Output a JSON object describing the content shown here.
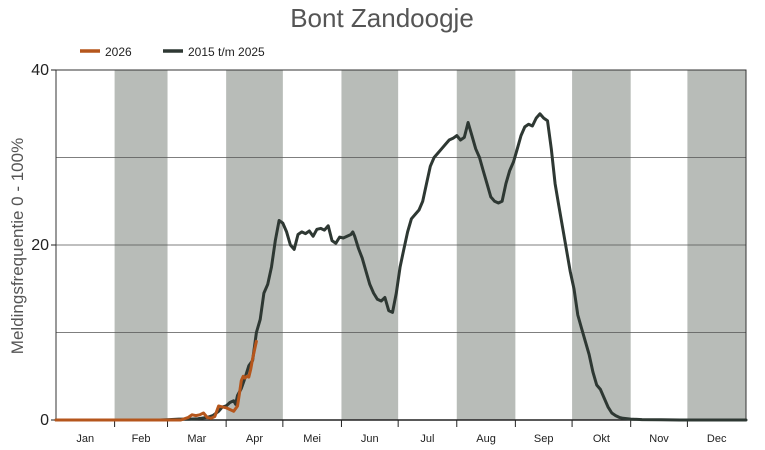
{
  "chart_data": {
    "type": "line",
    "title": "Bont Zandoogje",
    "ylabel": "Meldingsfrequentie 0 - 100%",
    "xlabel": "",
    "ylim": [
      0,
      40
    ],
    "yticks": [
      0,
      20,
      40
    ],
    "grid": true,
    "shaded_alternate_months": true,
    "legend_position": "top-left",
    "months": [
      "Jan",
      "Feb",
      "Mar",
      "Apr",
      "Mei",
      "Jun",
      "Jul",
      "Aug",
      "Sep",
      "Okt",
      "Nov",
      "Dec"
    ],
    "series": [
      {
        "name": "2026",
        "color": "#b5561c",
        "points": [
          [
            0,
            0
          ],
          [
            10,
            0
          ],
          [
            20,
            0
          ],
          [
            30,
            0
          ],
          [
            40,
            0
          ],
          [
            50,
            0
          ],
          [
            60,
            0
          ],
          [
            66,
            0
          ],
          [
            70,
            0.3
          ],
          [
            72,
            0.6
          ],
          [
            74,
            0.5
          ],
          [
            76,
            0.6
          ],
          [
            78,
            0.8
          ],
          [
            80,
            0.3
          ],
          [
            82,
            0.2
          ],
          [
            84,
            0.4
          ],
          [
            86,
            1.6
          ],
          [
            88,
            1.5
          ],
          [
            90,
            1.4
          ],
          [
            92,
            1.2
          ],
          [
            94,
            1.0
          ],
          [
            96,
            1.6
          ],
          [
            97,
            3.0
          ],
          [
            98,
            4.5
          ],
          [
            99,
            5.0
          ],
          [
            100,
            4.8
          ],
          [
            101,
            5.0
          ],
          [
            102,
            4.9
          ],
          [
            103,
            5.8
          ],
          [
            104,
            7.0
          ],
          [
            105,
            8.0
          ],
          [
            106,
            9.0
          ]
        ]
      },
      {
        "name": "2015 t/m 2025",
        "color": "#2e3833",
        "points": [
          [
            0,
            0
          ],
          [
            20,
            0
          ],
          [
            40,
            0
          ],
          [
            55,
            0
          ],
          [
            60,
            0.05
          ],
          [
            65,
            0.1
          ],
          [
            70,
            0.1
          ],
          [
            75,
            0.15
          ],
          [
            80,
            0.3
          ],
          [
            83,
            0.5
          ],
          [
            86,
            1.0
          ],
          [
            88,
            1.5
          ],
          [
            90,
            1.6
          ],
          [
            92,
            2.0
          ],
          [
            94,
            2.2
          ],
          [
            95,
            1.8
          ],
          [
            96,
            2.8
          ],
          [
            98,
            3.6
          ],
          [
            100,
            4.8
          ],
          [
            102,
            6.2
          ],
          [
            104,
            6.8
          ],
          [
            106,
            10.0
          ],
          [
            108,
            11.5
          ],
          [
            110,
            14.5
          ],
          [
            112,
            15.5
          ],
          [
            114,
            17.5
          ],
          [
            116,
            20.5
          ],
          [
            118,
            22.8
          ],
          [
            120,
            22.5
          ],
          [
            122,
            21.5
          ],
          [
            124,
            20.0
          ],
          [
            126,
            19.5
          ],
          [
            128,
            21.2
          ],
          [
            130,
            21.5
          ],
          [
            132,
            21.3
          ],
          [
            134,
            21.6
          ],
          [
            136,
            21.0
          ],
          [
            138,
            21.8
          ],
          [
            140,
            21.9
          ],
          [
            142,
            21.7
          ],
          [
            144,
            22.2
          ],
          [
            146,
            20.5
          ],
          [
            148,
            20.2
          ],
          [
            150,
            20.9
          ],
          [
            152,
            20.8
          ],
          [
            154,
            21.0
          ],
          [
            156,
            21.2
          ],
          [
            157,
            21.5
          ],
          [
            158,
            21.0
          ],
          [
            160,
            19.6
          ],
          [
            162,
            18.5
          ],
          [
            164,
            17.0
          ],
          [
            166,
            15.5
          ],
          [
            168,
            14.5
          ],
          [
            170,
            13.8
          ],
          [
            172,
            13.6
          ],
          [
            174,
            14.0
          ],
          [
            176,
            12.5
          ],
          [
            178,
            12.3
          ],
          [
            180,
            14.5
          ],
          [
            182,
            17.5
          ],
          [
            184,
            19.5
          ],
          [
            186,
            21.5
          ],
          [
            188,
            23.0
          ],
          [
            190,
            23.5
          ],
          [
            192,
            24.0
          ],
          [
            194,
            25.0
          ],
          [
            196,
            27.0
          ],
          [
            198,
            29.0
          ],
          [
            200,
            30.0
          ],
          [
            202,
            30.5
          ],
          [
            204,
            31.0
          ],
          [
            206,
            31.5
          ],
          [
            208,
            32.0
          ],
          [
            210,
            32.2
          ],
          [
            212,
            32.5
          ],
          [
            214,
            32.0
          ],
          [
            216,
            32.3
          ],
          [
            218,
            34.0
          ],
          [
            220,
            32.5
          ],
          [
            222,
            31.0
          ],
          [
            224,
            30.0
          ],
          [
            226,
            28.5
          ],
          [
            228,
            27.0
          ],
          [
            230,
            25.5
          ],
          [
            232,
            25.0
          ],
          [
            234,
            24.8
          ],
          [
            236,
            25.0
          ],
          [
            238,
            27.0
          ],
          [
            240,
            28.5
          ],
          [
            242,
            29.5
          ],
          [
            244,
            31.0
          ],
          [
            246,
            32.5
          ],
          [
            248,
            33.5
          ],
          [
            250,
            33.8
          ],
          [
            252,
            33.6
          ],
          [
            254,
            34.5
          ],
          [
            256,
            35.0
          ],
          [
            258,
            34.5
          ],
          [
            260,
            34.2
          ],
          [
            262,
            31.0
          ],
          [
            264,
            27.0
          ],
          [
            266,
            24.5
          ],
          [
            268,
            22.0
          ],
          [
            270,
            19.5
          ],
          [
            272,
            17.0
          ],
          [
            274,
            15.0
          ],
          [
            276,
            12.0
          ],
          [
            278,
            10.5
          ],
          [
            280,
            9.0
          ],
          [
            282,
            7.5
          ],
          [
            284,
            5.5
          ],
          [
            286,
            4.0
          ],
          [
            288,
            3.5
          ],
          [
            290,
            2.5
          ],
          [
            292,
            1.5
          ],
          [
            294,
            0.8
          ],
          [
            296,
            0.5
          ],
          [
            298,
            0.3
          ],
          [
            300,
            0.2
          ],
          [
            304,
            0.1
          ],
          [
            310,
            0.05
          ],
          [
            320,
            0.02
          ],
          [
            330,
            0
          ],
          [
            340,
            0
          ],
          [
            350,
            0
          ],
          [
            360,
            0
          ],
          [
            365,
            0
          ]
        ]
      }
    ]
  }
}
